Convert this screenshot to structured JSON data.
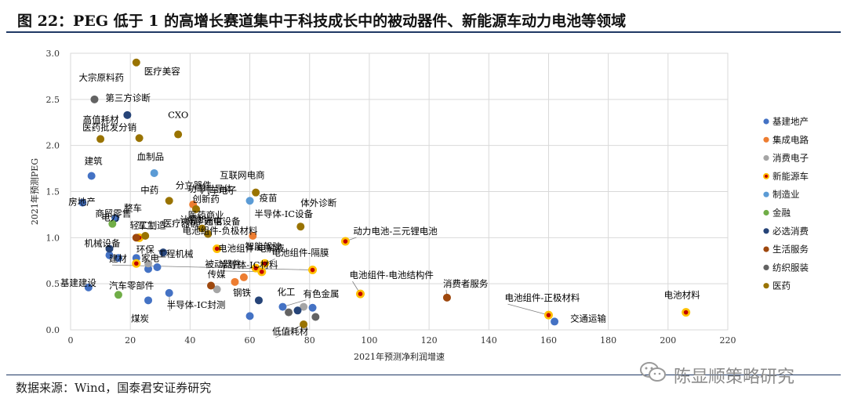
{
  "figure": {
    "title": "图 22：PEG 低于 1 的高增长赛道集中于科技成长中的被动器件、新能源车动力电池等领域",
    "source": "数据来源：Wind，国泰君安证券研究",
    "brand": "陈显顺策略研究"
  },
  "chart_data": {
    "type": "scatter",
    "xlabel": "2021年预测净利润增速",
    "ylabel": "2021年预测PEG",
    "xlim": [
      0,
      220
    ],
    "ylim": [
      0,
      3.0
    ],
    "xticks": [
      0,
      20,
      40,
      60,
      80,
      100,
      120,
      140,
      160,
      180,
      200,
      220
    ],
    "yticks": [
      0.0,
      0.5,
      1.0,
      1.5,
      2.0,
      2.5,
      3.0
    ],
    "ytick_labels": [
      "0.0",
      "0.5",
      "1.0",
      "1.5",
      "2.0",
      "2.5",
      "3.0"
    ],
    "grid": true,
    "legend_position": "right",
    "series": [
      {
        "name": "基建地产",
        "color": "#4472c4",
        "marker": "circle",
        "points": [
          {
            "x": 4,
            "y": 1.38,
            "label": "房地产"
          },
          {
            "x": 7,
            "y": 1.67,
            "label": "建筑"
          },
          {
            "x": 15,
            "y": 1.21,
            "label": "电力"
          },
          {
            "x": 6,
            "y": 0.46,
            "label": "基建建设"
          },
          {
            "x": 13,
            "y": 0.81,
            "label": "机械设备"
          },
          {
            "x": 16,
            "y": 0.78,
            "label": "建材"
          },
          {
            "x": 22,
            "y": 0.78,
            "label": "环保"
          },
          {
            "x": 26,
            "y": 0.66,
            "label": "汽车零部件"
          },
          {
            "x": 29,
            "y": 0.68,
            "label": "工程机械"
          },
          {
            "x": 26,
            "y": 0.32,
            "label": "煤炭"
          },
          {
            "x": 33,
            "y": 0.4,
            "label": "半导体-IC封测"
          },
          {
            "x": 60,
            "y": 0.15,
            "label": "钢铁"
          },
          {
            "x": 71,
            "y": 0.25,
            "label": "化工"
          },
          {
            "x": 81,
            "y": 0.24,
            "label": "有色金属"
          },
          {
            "x": 162,
            "y": 0.09,
            "label": "交通运输"
          }
        ]
      },
      {
        "name": "集成电路",
        "color": "#ed7d31",
        "marker": "circle",
        "points": [
          {
            "x": 41,
            "y": 1.36,
            "label": "功率半导体"
          },
          {
            "x": 61,
            "y": 1.02,
            "label": "半导体-IC设备"
          },
          {
            "x": 55,
            "y": 0.52,
            "label": "被动器件"
          },
          {
            "x": 58,
            "y": 0.57,
            "label": "半导体-IC材料"
          }
        ]
      },
      {
        "name": "消费电子",
        "color": "#a5a5a5",
        "marker": "circle",
        "points": [
          {
            "x": 26,
            "y": 0.72,
            "label": "家电"
          },
          {
            "x": 49,
            "y": 0.44,
            "label": "传媒"
          },
          {
            "x": 78,
            "y": 0.25,
            "label": "有色金属"
          }
        ]
      },
      {
        "name": "新能源车",
        "color": "#ffc000",
        "marker": "ring",
        "points": [
          {
            "x": 23,
            "y": 1.0,
            "label": "轻工制造"
          },
          {
            "x": 22,
            "y": 0.72,
            "label": "环保"
          },
          {
            "x": 49,
            "y": 0.88,
            "label": "电池组件-负极材料"
          },
          {
            "x": 62,
            "y": 0.67,
            "label": "电池组件-电解液"
          },
          {
            "x": 65,
            "y": 0.72,
            "label": "智能驾驶"
          },
          {
            "x": 64,
            "y": 0.63,
            "label": "半导体-IC材料"
          },
          {
            "x": 81,
            "y": 0.65,
            "label": "电池组件-隔膜"
          },
          {
            "x": 92,
            "y": 0.96,
            "label": "动力电池-三元锂电池"
          },
          {
            "x": 97,
            "y": 0.39,
            "label": "电池组件-电池结构件"
          },
          {
            "x": 160,
            "y": 0.16,
            "label": "电池组件-正极材料"
          },
          {
            "x": 206,
            "y": 0.19,
            "label": "电池材料"
          }
        ]
      },
      {
        "name": "制造业",
        "color": "#5b9bd5",
        "marker": "circle",
        "points": [
          {
            "x": 28,
            "y": 1.7,
            "label": "血制品"
          },
          {
            "x": 60,
            "y": 1.4,
            "label": "疫苗"
          }
        ]
      },
      {
        "name": "金融",
        "color": "#70ad47",
        "marker": "circle",
        "points": [
          {
            "x": 14,
            "y": 1.15,
            "label": "商贸零售"
          },
          {
            "x": 16,
            "y": 0.38,
            "label": "汽车零部件"
          }
        ]
      },
      {
        "name": "必选消费",
        "color": "#264478",
        "marker": "circle",
        "points": [
          {
            "x": 19,
            "y": 2.33,
            "label": "第三方诊断"
          },
          {
            "x": 13,
            "y": 0.88,
            "label": "机械设备"
          },
          {
            "x": 31,
            "y": 0.84,
            "label": "家电"
          },
          {
            "x": 63,
            "y": 0.32,
            "label": "钢铁"
          },
          {
            "x": 76,
            "y": 0.21,
            "label": "化工"
          }
        ]
      },
      {
        "name": "生活服务",
        "color": "#9e480e",
        "marker": "circle",
        "points": [
          {
            "x": 22,
            "y": 1.0,
            "label": "轻工制造"
          },
          {
            "x": 47,
            "y": 0.48,
            "label": "传媒"
          },
          {
            "x": 126,
            "y": 0.35,
            "label": "消费者服务"
          }
        ]
      },
      {
        "name": "纺织服装",
        "color": "#636363",
        "marker": "circle",
        "points": [
          {
            "x": 8,
            "y": 2.5,
            "label": "大宗原料药"
          },
          {
            "x": 73,
            "y": 0.19,
            "label": "化工"
          },
          {
            "x": 82,
            "y": 0.14,
            "label": "低值耗材"
          }
        ]
      },
      {
        "name": "医药",
        "color": "#997300",
        "marker": "circle",
        "points": [
          {
            "x": 22,
            "y": 2.9,
            "label": "医疗美容"
          },
          {
            "x": 10,
            "y": 2.07,
            "label": "医药批发分销"
          },
          {
            "x": 23,
            "y": 2.08,
            "label": "高值耗材"
          },
          {
            "x": 36,
            "y": 2.12,
            "label": "CXO"
          },
          {
            "x": 62,
            "y": 1.49,
            "label": "互联网电商"
          },
          {
            "x": 33,
            "y": 1.4,
            "label": "分立器件"
          },
          {
            "x": 42,
            "y": 1.31,
            "label": "汽车电子"
          },
          {
            "x": 44,
            "y": 1.1,
            "label": "医药商业"
          },
          {
            "x": 46,
            "y": 1.04,
            "label": "计算机"
          },
          {
            "x": 25,
            "y": 1.02,
            "label": "军工"
          },
          {
            "x": 77,
            "y": 1.12,
            "label": "体外诊断"
          },
          {
            "x": 78,
            "y": 0.06,
            "label": "低值耗材"
          }
        ]
      }
    ],
    "annotations": [
      {
        "text": "医疗美容",
        "x": 22,
        "y": 2.9
      },
      {
        "text": "第三方诊断",
        "x": 19,
        "y": 2.33
      },
      {
        "text": "大宗原料药",
        "x": 8,
        "y": 2.5
      },
      {
        "text": "CXO",
        "x": 36,
        "y": 2.12
      },
      {
        "text": "医药批发分销",
        "x": 10,
        "y": 2.07
      },
      {
        "text": "高值耗材",
        "x": 23,
        "y": 2.08
      },
      {
        "text": "建筑",
        "x": 7,
        "y": 1.67
      },
      {
        "text": "血制品",
        "x": 28,
        "y": 1.7
      },
      {
        "text": "互联网电商",
        "x": 62,
        "y": 1.49
      },
      {
        "text": "房地产",
        "x": 4,
        "y": 1.38
      },
      {
        "text": "分立器件",
        "x": 33,
        "y": 1.4
      },
      {
        "text": "功率半导体",
        "x": 41,
        "y": 1.36
      },
      {
        "text": "中药",
        "x": 25,
        "y": 1.33
      },
      {
        "text": "汽车电子",
        "x": 42,
        "y": 1.31
      },
      {
        "text": "疫苗",
        "x": 60,
        "y": 1.4
      },
      {
        "text": "体外诊断",
        "x": 77,
        "y": 1.12
      },
      {
        "text": "电力",
        "x": 15,
        "y": 1.21
      },
      {
        "text": "创新药",
        "x": 45,
        "y": 1.24
      },
      {
        "text": "半导体-IC设备",
        "x": 61,
        "y": 1.02
      },
      {
        "text": "整车",
        "x": 21,
        "y": 1.16
      },
      {
        "text": "医药商业",
        "x": 44,
        "y": 1.1
      },
      {
        "text": "光学光电",
        "x": 46,
        "y": 1.08
      },
      {
        "text": "计算机",
        "x": 46,
        "y": 1.04
      },
      {
        "text": "通信设备",
        "x": 50,
        "y": 1.06
      },
      {
        "text": "商贸零售",
        "x": 14,
        "y": 1.15
      },
      {
        "text": "医疗器械",
        "x": 33,
        "y": 1.02
      },
      {
        "text": "轻工制造",
        "x": 23,
        "y": 1.0
      },
      {
        "text": "军工",
        "x": 25,
        "y": 1.02
      },
      {
        "text": "动力电池-三元锂电池",
        "x": 92,
        "y": 0.96
      },
      {
        "text": "环保",
        "x": 22,
        "y": 0.72
      },
      {
        "text": "机械设备",
        "x": 13,
        "y": 0.88
      },
      {
        "text": "家电",
        "x": 26,
        "y": 0.72
      },
      {
        "text": "电池组件-负极材料",
        "x": 49,
        "y": 0.88
      },
      {
        "text": "智能驾驶",
        "x": 65,
        "y": 0.72
      },
      {
        "text": "电池组件-电解液",
        "x": 62,
        "y": 0.67
      },
      {
        "text": "电池组件-隔膜",
        "x": 81,
        "y": 0.65
      },
      {
        "text": "建材",
        "x": 16,
        "y": 0.78
      },
      {
        "text": "被动器件",
        "x": 55,
        "y": 0.52
      },
      {
        "text": "半导体-IC材料",
        "x": 64,
        "y": 0.63
      },
      {
        "text": "汽车零部件",
        "x": 16,
        "y": 0.38
      },
      {
        "text": "工程机械",
        "x": 29,
        "y": 0.68
      },
      {
        "text": "电池组件-电池结构件",
        "x": 97,
        "y": 0.39
      },
      {
        "text": "传媒",
        "x": 49,
        "y": 0.44
      },
      {
        "text": "消费者服务",
        "x": 126,
        "y": 0.35
      },
      {
        "text": "基建建设",
        "x": 6,
        "y": 0.46
      },
      {
        "text": "钢铁",
        "x": 63,
        "y": 0.32
      },
      {
        "text": "化工",
        "x": 71,
        "y": 0.25
      },
      {
        "text": "有色金属",
        "x": 81,
        "y": 0.24
      },
      {
        "text": "电池组件-正极材料",
        "x": 160,
        "y": 0.16
      },
      {
        "text": "电池材料",
        "x": 206,
        "y": 0.19
      },
      {
        "text": "半导体-IC封测",
        "x": 33,
        "y": 0.4
      },
      {
        "text": "交通运输",
        "x": 162,
        "y": 0.09
      },
      {
        "text": "煤炭",
        "x": 26,
        "y": 0.32
      },
      {
        "text": "低值耗材",
        "x": 78,
        "y": 0.06
      }
    ]
  }
}
